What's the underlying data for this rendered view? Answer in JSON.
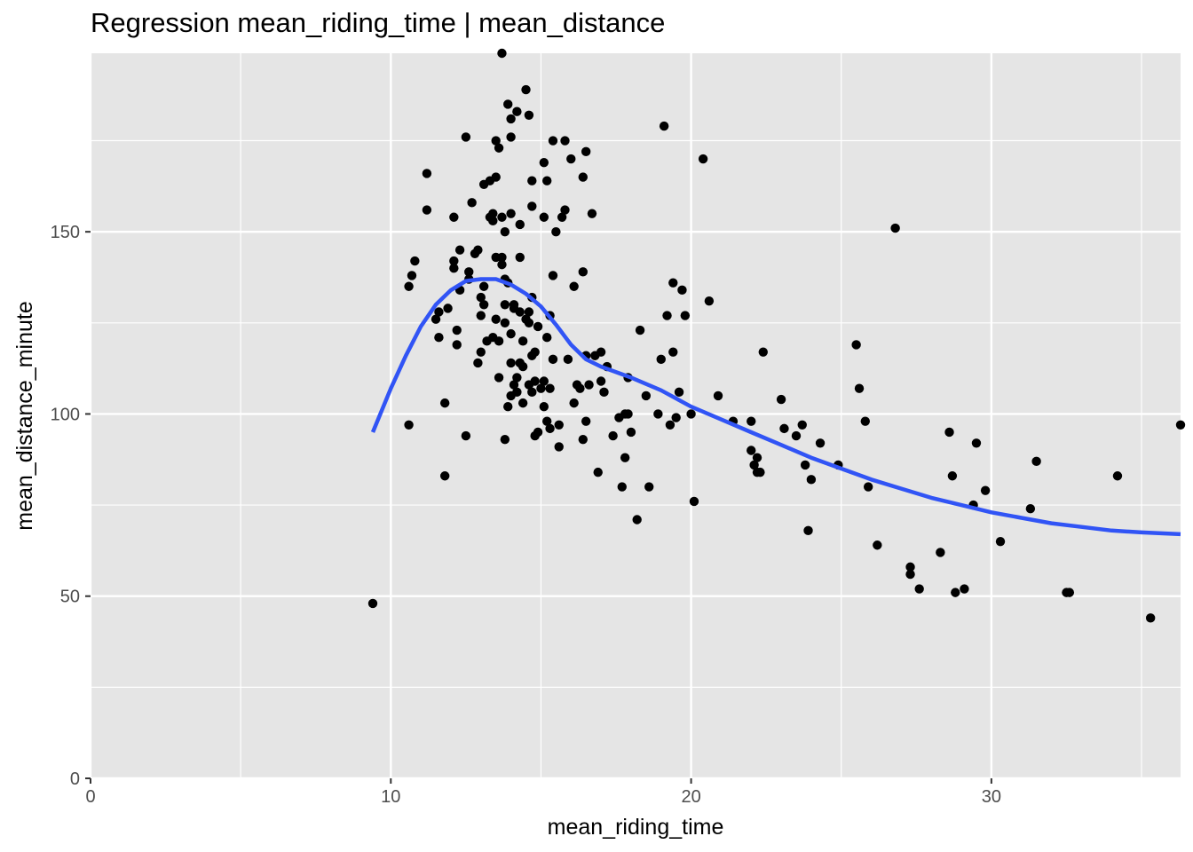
{
  "chart_data": {
    "type": "scatter",
    "title": "Regression mean_riding_time | mean_distance",
    "xlabel": "mean_riding_time",
    "ylabel": "mean_distance_minute",
    "xlim": [
      0,
      36.3
    ],
    "ylim": [
      0,
      199
    ],
    "xticks": [
      0,
      10,
      20,
      30
    ],
    "yticks": [
      0,
      50,
      100,
      150
    ],
    "grid": true,
    "colors": {
      "panel": "#e5e5e5",
      "grid": "#ffffff",
      "point": "#000000",
      "smooth": "#3154f5"
    },
    "points": [
      [
        9.4,
        48
      ],
      [
        10.6,
        97
      ],
      [
        10.6,
        135
      ],
      [
        10.7,
        138
      ],
      [
        10.8,
        142
      ],
      [
        11.2,
        156
      ],
      [
        11.2,
        166
      ],
      [
        11.5,
        126
      ],
      [
        11.6,
        128
      ],
      [
        11.6,
        121
      ],
      [
        11.8,
        83
      ],
      [
        11.8,
        103
      ],
      [
        11.9,
        129
      ],
      [
        12.1,
        154
      ],
      [
        12.1,
        142
      ],
      [
        12.1,
        140
      ],
      [
        12.2,
        123
      ],
      [
        12.2,
        119
      ],
      [
        12.3,
        145
      ],
      [
        12.3,
        134
      ],
      [
        12.5,
        176
      ],
      [
        12.5,
        94
      ],
      [
        12.6,
        137
      ],
      [
        12.6,
        139
      ],
      [
        12.7,
        158
      ],
      [
        12.8,
        144
      ],
      [
        12.9,
        145
      ],
      [
        12.9,
        114
      ],
      [
        13.0,
        132
      ],
      [
        13.0,
        117
      ],
      [
        13.0,
        127
      ],
      [
        13.1,
        163
      ],
      [
        13.1,
        130
      ],
      [
        13.1,
        135
      ],
      [
        13.2,
        120
      ],
      [
        13.3,
        164
      ],
      [
        13.3,
        154
      ],
      [
        13.4,
        153
      ],
      [
        13.4,
        155
      ],
      [
        13.4,
        121
      ],
      [
        13.5,
        143
      ],
      [
        13.5,
        126
      ],
      [
        13.5,
        165
      ],
      [
        13.5,
        175
      ],
      [
        13.6,
        173
      ],
      [
        13.6,
        110
      ],
      [
        13.6,
        120
      ],
      [
        13.7,
        154
      ],
      [
        13.7,
        143
      ],
      [
        13.7,
        141
      ],
      [
        13.7,
        199
      ],
      [
        13.8,
        150
      ],
      [
        13.8,
        137
      ],
      [
        13.8,
        130
      ],
      [
        13.8,
        125
      ],
      [
        13.8,
        93
      ],
      [
        13.9,
        136
      ],
      [
        13.9,
        102
      ],
      [
        13.9,
        185
      ],
      [
        14.0,
        122
      ],
      [
        14.0,
        114
      ],
      [
        14.0,
        105
      ],
      [
        14.0,
        155
      ],
      [
        14.0,
        176
      ],
      [
        14.0,
        181
      ],
      [
        14.1,
        108
      ],
      [
        14.1,
        130
      ],
      [
        14.1,
        129
      ],
      [
        14.2,
        183
      ],
      [
        14.2,
        110
      ],
      [
        14.2,
        106
      ],
      [
        14.3,
        152
      ],
      [
        14.3,
        143
      ],
      [
        14.3,
        128
      ],
      [
        14.3,
        114
      ],
      [
        14.4,
        113
      ],
      [
        14.4,
        103
      ],
      [
        14.4,
        120
      ],
      [
        14.5,
        189
      ],
      [
        14.5,
        126
      ],
      [
        14.6,
        182
      ],
      [
        14.6,
        125
      ],
      [
        14.6,
        108
      ],
      [
        14.6,
        128
      ],
      [
        14.7,
        116
      ],
      [
        14.7,
        164
      ],
      [
        14.7,
        157
      ],
      [
        14.7,
        132
      ],
      [
        14.7,
        106
      ],
      [
        14.8,
        94
      ],
      [
        14.8,
        109
      ],
      [
        14.8,
        117
      ],
      [
        14.9,
        124
      ],
      [
        14.9,
        95
      ],
      [
        15.0,
        107
      ],
      [
        15.1,
        109
      ],
      [
        15.1,
        102
      ],
      [
        15.1,
        154
      ],
      [
        15.1,
        169
      ],
      [
        15.2,
        121
      ],
      [
        15.2,
        98
      ],
      [
        15.2,
        164
      ],
      [
        15.3,
        107
      ],
      [
        15.3,
        96
      ],
      [
        15.3,
        127
      ],
      [
        15.4,
        138
      ],
      [
        15.4,
        175
      ],
      [
        15.4,
        115
      ],
      [
        15.5,
        150
      ],
      [
        15.6,
        91
      ],
      [
        15.6,
        97
      ],
      [
        15.7,
        154
      ],
      [
        15.8,
        175
      ],
      [
        15.8,
        156
      ],
      [
        15.9,
        115
      ],
      [
        16.0,
        170
      ],
      [
        16.1,
        103
      ],
      [
        16.1,
        135
      ],
      [
        16.2,
        108
      ],
      [
        16.3,
        107
      ],
      [
        16.4,
        93
      ],
      [
        16.4,
        165
      ],
      [
        16.4,
        139
      ],
      [
        16.5,
        172
      ],
      [
        16.5,
        98
      ],
      [
        16.5,
        116
      ],
      [
        16.6,
        108
      ],
      [
        16.7,
        155
      ],
      [
        16.8,
        116
      ],
      [
        16.9,
        84
      ],
      [
        17.0,
        109
      ],
      [
        17.0,
        117
      ],
      [
        17.1,
        106
      ],
      [
        17.2,
        113
      ],
      [
        17.4,
        94
      ],
      [
        17.6,
        99
      ],
      [
        17.7,
        80
      ],
      [
        17.8,
        100
      ],
      [
        17.8,
        88
      ],
      [
        17.9,
        100
      ],
      [
        17.9,
        110
      ],
      [
        18.0,
        95
      ],
      [
        18.2,
        71
      ],
      [
        18.3,
        123
      ],
      [
        18.5,
        105
      ],
      [
        18.6,
        80
      ],
      [
        18.9,
        100
      ],
      [
        19.0,
        115
      ],
      [
        19.1,
        179
      ],
      [
        19.2,
        127
      ],
      [
        19.3,
        97
      ],
      [
        19.4,
        136
      ],
      [
        19.4,
        117
      ],
      [
        19.5,
        99
      ],
      [
        19.6,
        106
      ],
      [
        19.7,
        134
      ],
      [
        19.8,
        127
      ],
      [
        20.0,
        100
      ],
      [
        20.1,
        76
      ],
      [
        20.4,
        170
      ],
      [
        20.6,
        131
      ],
      [
        20.9,
        105
      ],
      [
        21.4,
        98
      ],
      [
        22.0,
        90
      ],
      [
        22.0,
        98
      ],
      [
        22.1,
        86
      ],
      [
        22.2,
        88
      ],
      [
        22.2,
        84
      ],
      [
        22.3,
        84
      ],
      [
        22.4,
        117
      ],
      [
        23.0,
        104
      ],
      [
        23.1,
        96
      ],
      [
        23.5,
        94
      ],
      [
        23.7,
        97
      ],
      [
        23.8,
        86
      ],
      [
        23.9,
        68
      ],
      [
        24.0,
        82
      ],
      [
        24.3,
        92
      ],
      [
        24.9,
        86
      ],
      [
        25.5,
        119
      ],
      [
        25.6,
        107
      ],
      [
        25.8,
        98
      ],
      [
        25.9,
        80
      ],
      [
        26.2,
        64
      ],
      [
        26.8,
        151
      ],
      [
        27.3,
        58
      ],
      [
        27.3,
        56
      ],
      [
        27.6,
        52
      ],
      [
        28.3,
        62
      ],
      [
        28.6,
        95
      ],
      [
        28.7,
        83
      ],
      [
        28.8,
        51
      ],
      [
        29.1,
        52
      ],
      [
        29.4,
        75
      ],
      [
        29.5,
        92
      ],
      [
        29.8,
        79
      ],
      [
        30.3,
        65
      ],
      [
        31.3,
        74
      ],
      [
        31.5,
        87
      ],
      [
        32.5,
        51
      ],
      [
        32.6,
        51
      ],
      [
        34.2,
        83
      ],
      [
        35.3,
        44
      ],
      [
        36.3,
        97
      ]
    ],
    "smooth": {
      "x": [
        9.4,
        10.0,
        10.5,
        11.0,
        11.5,
        12.0,
        12.5,
        13.0,
        13.5,
        14.0,
        14.5,
        15.0,
        15.5,
        16.0,
        16.5,
        17.0,
        18.0,
        19.0,
        20.0,
        21.0,
        22.0,
        23.0,
        24.0,
        25.0,
        26.0,
        27.0,
        28.0,
        29.0,
        30.0,
        31.0,
        32.0,
        33.0,
        34.0,
        35.0,
        36.3
      ],
      "y": [
        95,
        107,
        116,
        124,
        130,
        134,
        136.5,
        137,
        137,
        135.5,
        133,
        129.5,
        124.5,
        119,
        115,
        113,
        110,
        106.5,
        102,
        98.5,
        95,
        91.5,
        88,
        85,
        82,
        79.5,
        77,
        75,
        73,
        71.5,
        70,
        69,
        68,
        67.5,
        67
      ]
    }
  }
}
